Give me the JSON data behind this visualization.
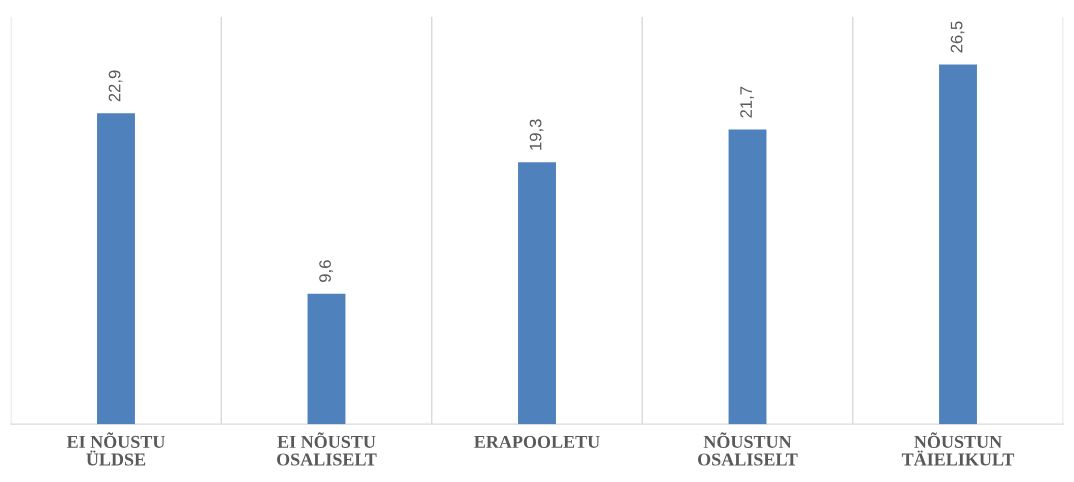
{
  "chart_data": {
    "type": "bar",
    "categories": [
      "EI NÕUSTU\nÜLDSE",
      "EI NÕUSTU\nOSALISELT",
      "ERAPOOLETU",
      "NÕUSTUN\nOSALISELT",
      "NÕUSTUN\nTÄIELIKULT"
    ],
    "values": [
      22.9,
      9.6,
      19.3,
      21.7,
      26.5
    ],
    "value_labels": [
      "22,9",
      "9,6",
      "19,3",
      "21,7",
      "26,5"
    ],
    "color": "#4f81bd",
    "ylim": [
      0,
      30
    ],
    "tick_labels": "x",
    "grid": "x"
  }
}
